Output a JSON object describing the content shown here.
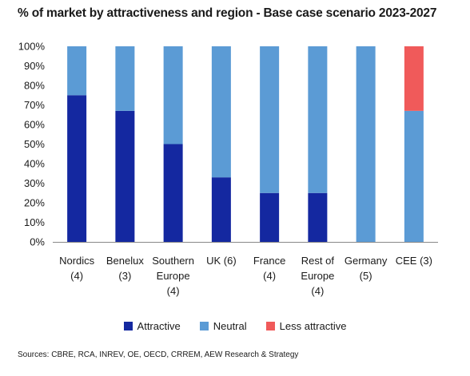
{
  "title": "% of market by attractiveness and region - Base case scenario 2023-2027",
  "source": "Sources: CBRE, RCA, INREV, OE, OECD, CRREM, AEW Research & Strategy",
  "colors": {
    "attractive": "#1428a0",
    "neutral": "#5b9bd5",
    "less_attractive": "#f05a5a",
    "axis": "#888888"
  },
  "chart_data": {
    "type": "bar",
    "stacked": true,
    "title": "% of market by attractiveness and region - Base case scenario 2023-2027",
    "categories": [
      [
        "Nordics",
        "(4)"
      ],
      [
        "Benelux",
        "(3)"
      ],
      [
        "Southern",
        "Europe",
        "(4)"
      ],
      [
        "UK (6)"
      ],
      [
        "France",
        "(4)"
      ],
      [
        "Rest of",
        "Europe",
        "(4)"
      ],
      [
        "Germany",
        "(5)"
      ],
      [
        "CEE (3)"
      ]
    ],
    "series": [
      {
        "name": "Attractive",
        "values": [
          75,
          67,
          50,
          33,
          25,
          25,
          0,
          0
        ]
      },
      {
        "name": "Neutral",
        "values": [
          25,
          33,
          50,
          67,
          75,
          75,
          100,
          67
        ]
      },
      {
        "name": "Less attractive",
        "values": [
          0,
          0,
          0,
          0,
          0,
          0,
          0,
          33
        ]
      }
    ],
    "ylim": [
      0,
      100
    ],
    "yticks": [
      "0%",
      "10%",
      "20%",
      "30%",
      "40%",
      "50%",
      "60%",
      "70%",
      "80%",
      "90%",
      "100%"
    ],
    "legend": "bottom"
  }
}
